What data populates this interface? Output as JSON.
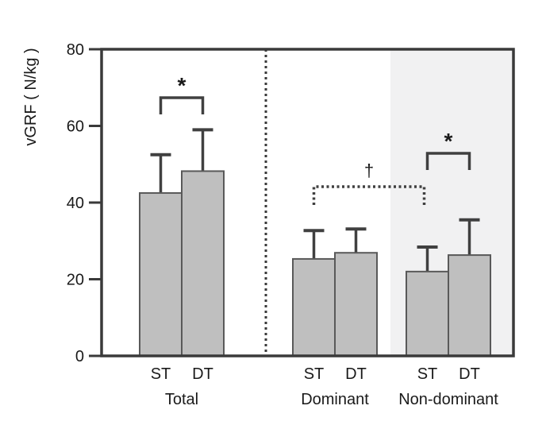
{
  "figure": {
    "background": "#ffffff"
  },
  "chart_data": {
    "type": "bar",
    "title": "",
    "xlabel": "",
    "ylabel": "vGRF ( N/kg )",
    "ylim": [
      0,
      80
    ],
    "yticks": [
      0,
      20,
      40,
      60,
      80
    ],
    "grid": false,
    "legend": "none",
    "error_bars": "upper SD whiskers with caps",
    "groups": [
      {
        "label": "Total",
        "shaded": false,
        "bars": [
          {
            "label": "ST",
            "value": 42.5,
            "error_top": 52.5
          },
          {
            "label": "DT",
            "value": 48.2,
            "error_top": 59.0
          }
        ]
      },
      {
        "label": "Dominant",
        "shaded": false,
        "bars": [
          {
            "label": "ST",
            "value": 25.3,
            "error_top": 32.7
          },
          {
            "label": "DT",
            "value": 26.9,
            "error_top": 33.1
          }
        ]
      },
      {
        "label": "Non-dominant",
        "shaded": true,
        "bars": [
          {
            "label": "ST",
            "value": 22.0,
            "error_top": 28.4
          },
          {
            "label": "DT",
            "value": 26.3,
            "error_top": 35.5
          }
        ]
      }
    ],
    "annotations": [
      {
        "type": "bracket",
        "style": "solid",
        "symbol": "*",
        "scope": "within-group",
        "group": "Total",
        "between": [
          "ST",
          "DT"
        ]
      },
      {
        "type": "bracket",
        "style": "dotted",
        "symbol": "†",
        "scope": "between-groups",
        "between": [
          "Dominant",
          "Non-dominant"
        ]
      },
      {
        "type": "bracket",
        "style": "solid",
        "symbol": "*",
        "scope": "within-group",
        "group": "Non-dominant",
        "between": [
          "ST",
          "DT"
        ]
      }
    ],
    "divider": {
      "style": "dotted-vertical",
      "after_group": "Total"
    },
    "colors": {
      "bar_fill": "#bfbfbf",
      "bar_stroke": "#595959",
      "error_bar": "#404040",
      "axis": "#3a3a3a",
      "bracket": "#404040",
      "shaded_region": "#f1f1f2",
      "text": "#1a1a1a"
    }
  }
}
